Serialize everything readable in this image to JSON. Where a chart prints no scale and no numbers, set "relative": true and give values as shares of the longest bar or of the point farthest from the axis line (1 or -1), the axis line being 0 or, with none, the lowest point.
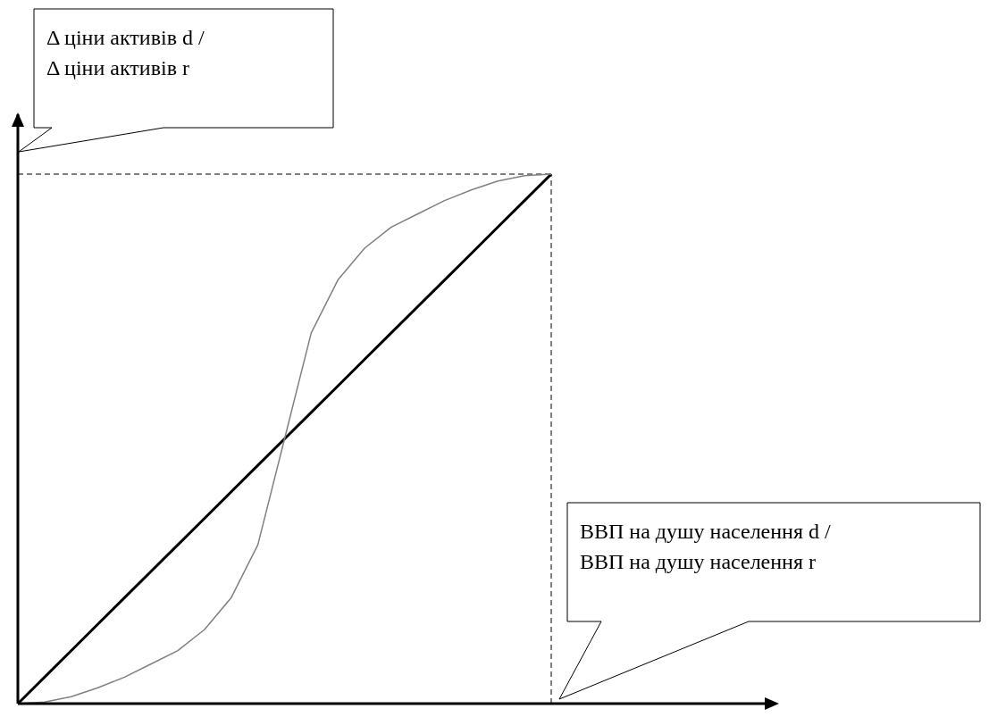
{
  "chart_data": {
    "type": "line",
    "relative": true,
    "marker": "none",
    "xlabel": "ВВП на душу населення d /\nВВП на душу населення r",
    "ylabel": "Δ ціни активів d /\nΔ ціни активів r",
    "categories": [
      null,
      null,
      null,
      null,
      null,
      null,
      null,
      null,
      null,
      null,
      null,
      null,
      null,
      null,
      null,
      null,
      null,
      null,
      null,
      null,
      null
    ],
    "series": [
      {
        "color": "#000000",
        "values": [
          0,
          0.05,
          0.1,
          0.15,
          0.2,
          0.25,
          0.3,
          0.35,
          0.4,
          0.45,
          0.5,
          0.55,
          0.6,
          0.65,
          0.7,
          0.75,
          0.8,
          0.85,
          0.9,
          0.95,
          1
        ]
      },
      {
        "color": "#808080",
        "values": [
          0,
          0.003,
          0.013,
          0.03,
          0.05,
          0.075,
          0.1,
          0.14,
          0.2,
          0.3,
          0.5,
          0.7,
          0.8,
          0.86,
          0.9,
          0.925,
          0.95,
          0.97,
          0.987,
          0.997,
          1
        ]
      }
    ]
  }
}
